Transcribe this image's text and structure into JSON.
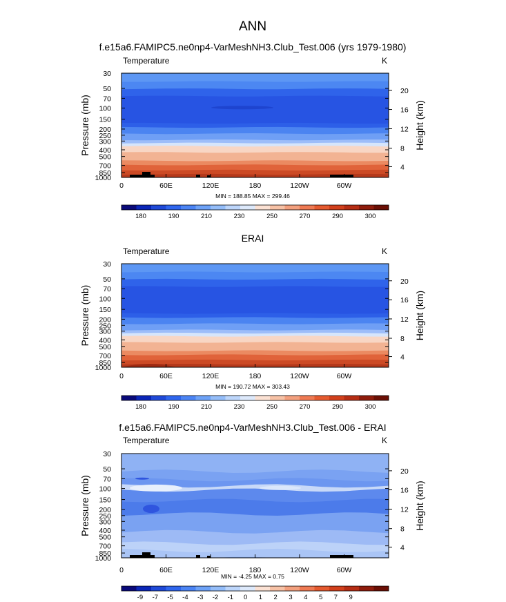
{
  "figure": {
    "title": "ANN"
  },
  "colors": {
    "temperature_bar": [
      "#0a0a7a",
      "#0b26b8",
      "#1f49d8",
      "#2f66ee",
      "#4b84f4",
      "#6da2f7",
      "#94bdf9",
      "#bdd6fb",
      "#dde9fb",
      "#fbe1d3",
      "#f7c2a6",
      "#f3a07e",
      "#ef7a53",
      "#e55a2f",
      "#d2401c",
      "#b62d14",
      "#8f1c0c",
      "#6b0f05"
    ],
    "diff_bar": [
      "#0a0a7a",
      "#0b26b8",
      "#1f49d8",
      "#2f66ee",
      "#4b84f4",
      "#6da2f7",
      "#94bdf9",
      "#bdd6fb",
      "#dde9fb",
      "#fbe1d3",
      "#f7c2a6",
      "#f3a07e",
      "#ef7a53",
      "#e55a2f",
      "#d2401c",
      "#b62d14",
      "#8f1c0c",
      "#6b0f05"
    ],
    "temperature_layers": [
      "#5d97f4",
      "#4c87f2",
      "#2f63ea",
      "#2754e3",
      "#2d5fe8",
      "#4b84f1",
      "#6f9ff5",
      "#9dbdf9",
      "#d6e5fb",
      "#f8d6c4",
      "#f2b393",
      "#eb8a61",
      "#e0633a",
      "#cc4a25",
      "#b5391b"
    ],
    "diff_layers": [
      "#8fb2f4",
      "#7aa2f2",
      "#6c96f0",
      "#c8d9f8",
      "#5d89ed",
      "#4c7bea",
      "#7aa2f2",
      "#9dbaf5",
      "#bcd2f8",
      "#aac5f6"
    ],
    "topography": "#000000"
  },
  "chart_data": [
    {
      "type": "heatmap",
      "subtitle": "f.e15a6.FAMIPC5.ne0np4-VarMeshNH3.Club_Test.006 (yrs 1979-1980)",
      "variable_label": "Temperature",
      "units_label": "K",
      "ylabel": "Pressure (mb)",
      "y2label": "Height (km)",
      "ylim": [
        1000,
        30
      ],
      "yticks": [
        "30",
        "50",
        "70",
        "100",
        "150",
        "200",
        "250",
        "300",
        "400",
        "500",
        "700",
        "850",
        "1000"
      ],
      "y2ticks": [
        "20",
        "16",
        "12",
        "8",
        "4"
      ],
      "xticks": [
        "0",
        "60E",
        "120E",
        "180",
        "120W",
        "60W"
      ],
      "stats": "MIN = 188.85  MAX = 299.46",
      "min": 188.85,
      "max": 299.46,
      "colorbar_labels": [
        "180",
        "190",
        "210",
        "230",
        "250",
        "270",
        "290",
        "300"
      ]
    },
    {
      "type": "heatmap",
      "subtitle": "ERAI",
      "variable_label": "Temperature",
      "units_label": "K",
      "ylabel": "Pressure (mb)",
      "y2label": "Height (km)",
      "ylim": [
        1000,
        30
      ],
      "yticks": [
        "30",
        "50",
        "70",
        "100",
        "150",
        "200",
        "250",
        "300",
        "400",
        "500",
        "700",
        "850",
        "1000"
      ],
      "y2ticks": [
        "20",
        "16",
        "12",
        "8",
        "4"
      ],
      "xticks": [
        "0",
        "60E",
        "120E",
        "180",
        "120W",
        "60W"
      ],
      "stats": "MIN = 190.72  MAX = 303.43",
      "min": 190.72,
      "max": 303.43,
      "colorbar_labels": [
        "180",
        "190",
        "210",
        "230",
        "250",
        "270",
        "290",
        "300"
      ]
    },
    {
      "type": "heatmap",
      "subtitle": "f.e15a6.FAMIPC5.ne0np4-VarMeshNH3.Club_Test.006 - ERAI",
      "variable_label": "Temperature",
      "units_label": "K",
      "ylabel": "Pressure (mb)",
      "y2label": "Height (km)",
      "ylim": [
        1000,
        30
      ],
      "yticks": [
        "30",
        "50",
        "70",
        "100",
        "150",
        "200",
        "250",
        "300",
        "400",
        "500",
        "700",
        "850",
        "1000"
      ],
      "y2ticks": [
        "20",
        "16",
        "12",
        "8",
        "4"
      ],
      "xticks": [
        "0",
        "60E",
        "120E",
        "180",
        "120W",
        "60W"
      ],
      "stats": "MIN = -4.25  MAX =   0.75",
      "min": -4.25,
      "max": 0.75,
      "colorbar_labels": [
        "-9",
        "-7",
        "-5",
        "-4",
        "-3",
        "-2",
        "-1",
        "0",
        "1",
        "2",
        "3",
        "4",
        "5",
        "7",
        "9"
      ]
    }
  ]
}
